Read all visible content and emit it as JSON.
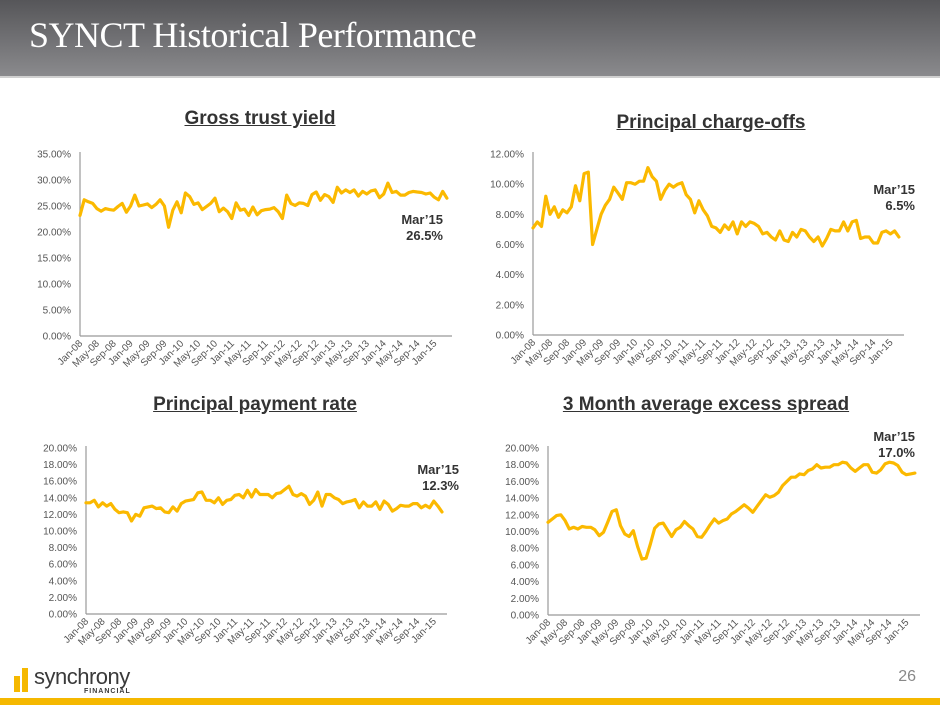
{
  "header": {
    "title": "SYNCT Historical Performance"
  },
  "footer": {
    "logo_text": "synchrony",
    "logo_sub": "FINANCIAL",
    "page_number": "26"
  },
  "colors": {
    "line": "#fbb900",
    "axis": "#999999",
    "header_top": "#565659",
    "header_bottom": "#8a8a8d",
    "footer_bar": "#f5b800"
  },
  "x_ticks": [
    "Jan-08",
    "May-08",
    "Sep-08",
    "Jan-09",
    "May-09",
    "Sep-09",
    "Jan-10",
    "May-10",
    "Sep-10",
    "Jan-11",
    "May-11",
    "Sep-11",
    "Jan-12",
    "May-12",
    "Sep-12",
    "Jan-13",
    "May-13",
    "Sep-13",
    "Jan-14",
    "May-14",
    "Sep-14",
    "Jan-15"
  ],
  "chart_data": [
    {
      "type": "line",
      "title": "Gross trust yield",
      "xlabel": "",
      "ylabel": "",
      "ylim": [
        0,
        35
      ],
      "y_ticks": [
        "0.00%",
        "5.00%",
        "10.00%",
        "15.00%",
        "20.00%",
        "25.00%",
        "30.00%",
        "35.00%"
      ],
      "y_tick_values": [
        0,
        5,
        10,
        15,
        20,
        25,
        30,
        35
      ],
      "annotation": {
        "line1": "Mar’15",
        "line2": "26.5%"
      },
      "series": [
        {
          "name": "Gross trust yield",
          "values": [
            23.2,
            26.2,
            25.8,
            25.5,
            24.5,
            24.0,
            24.5,
            24.3,
            24.2,
            24.9,
            25.5,
            23.8,
            25.0,
            27.1,
            25.0,
            25.2,
            25.4,
            24.7,
            25.3,
            26.2,
            25.0,
            20.9,
            24.2,
            25.8,
            23.7,
            27.5,
            26.8,
            25.3,
            25.6,
            24.3,
            24.9,
            25.5,
            26.5,
            23.9,
            24.6,
            23.9,
            22.6,
            25.6,
            24.2,
            24.4,
            23.2,
            24.8,
            23.3,
            24.1,
            24.3,
            24.4,
            24.7,
            23.9,
            22.6,
            27.1,
            25.5,
            25.1,
            25.6,
            25.5,
            25.1,
            27.2,
            27.7,
            26.1,
            27.2,
            26.8,
            25.7,
            28.6,
            27.5,
            28.1,
            27.6,
            28.1,
            26.9,
            27.8,
            27.3,
            27.9,
            28.1,
            26.6,
            27.3,
            29.4,
            27.6,
            27.8,
            27.1,
            27.1,
            27.6,
            27.8,
            27.7,
            27.6,
            27.3,
            27.5,
            26.7,
            26.2,
            27.8,
            26.5
          ]
        }
      ]
    },
    {
      "type": "line",
      "title": "Principal charge-offs",
      "xlabel": "",
      "ylabel": "",
      "ylim": [
        0,
        12
      ],
      "y_ticks": [
        "0.00%",
        "2.00%",
        "4.00%",
        "6.00%",
        "8.00%",
        "10.00%",
        "12.00%"
      ],
      "y_tick_values": [
        0,
        2,
        4,
        6,
        8,
        10,
        12
      ],
      "annotation": {
        "line1": "Mar’15",
        "line2": "6.5%"
      },
      "series": [
        {
          "name": "Principal charge-offs",
          "values": [
            7.1,
            7.5,
            7.2,
            9.2,
            8.0,
            8.5,
            7.8,
            8.3,
            8.1,
            8.5,
            9.9,
            8.9,
            10.7,
            10.8,
            6.0,
            7.0,
            8.0,
            8.6,
            9.0,
            9.8,
            9.4,
            9.0,
            10.1,
            10.1,
            10.0,
            10.2,
            10.2,
            11.1,
            10.5,
            10.2,
            9.0,
            9.6,
            10.0,
            9.8,
            10.0,
            10.1,
            9.3,
            9.0,
            8.1,
            8.9,
            8.3,
            7.9,
            7.2,
            7.1,
            6.8,
            7.3,
            7.0,
            7.5,
            6.7,
            7.5,
            7.2,
            7.5,
            7.4,
            7.2,
            6.7,
            6.8,
            6.5,
            6.3,
            6.9,
            6.3,
            6.2,
            6.8,
            6.5,
            7.0,
            6.9,
            6.5,
            6.2,
            6.5,
            5.9,
            6.4,
            7.0,
            6.9,
            6.9,
            7.5,
            6.9,
            7.5,
            7.6,
            6.4,
            6.5,
            6.5,
            6.1,
            6.1,
            6.8,
            6.9,
            6.7,
            6.9,
            6.5
          ]
        }
      ]
    },
    {
      "type": "line",
      "title": "Principal payment rate",
      "xlabel": "",
      "ylabel": "",
      "ylim": [
        0,
        20
      ],
      "y_ticks": [
        "0.00%",
        "2.00%",
        "4.00%",
        "6.00%",
        "8.00%",
        "10.00%",
        "12.00%",
        "14.00%",
        "16.00%",
        "18.00%",
        "20.00%"
      ],
      "y_tick_values": [
        0,
        2,
        4,
        6,
        8,
        10,
        12,
        14,
        16,
        18,
        20
      ],
      "annotation": {
        "line1": "Mar’15",
        "line2": "12.3%"
      },
      "series": [
        {
          "name": "Principal payment rate",
          "values": [
            13.4,
            13.4,
            13.7,
            12.9,
            13.4,
            13.0,
            13.3,
            12.6,
            12.2,
            12.3,
            12.2,
            11.2,
            12.0,
            11.8,
            12.8,
            12.9,
            13.0,
            12.7,
            12.8,
            12.3,
            12.2,
            12.9,
            12.4,
            13.3,
            13.6,
            13.7,
            13.8,
            14.6,
            14.7,
            13.7,
            13.7,
            13.4,
            14.0,
            13.2,
            13.7,
            13.8,
            14.3,
            14.4,
            14.0,
            14.9,
            14.1,
            15.0,
            14.4,
            14.4,
            14.4,
            14.0,
            14.5,
            14.6,
            15.0,
            15.4,
            14.4,
            14.2,
            14.5,
            14.2,
            13.2,
            13.7,
            14.7,
            13.0,
            14.4,
            14.4,
            14.0,
            13.8,
            13.3,
            13.5,
            13.6,
            13.8,
            12.8,
            13.5,
            13.0,
            13.0,
            13.5,
            12.6,
            13.6,
            13.2,
            12.4,
            12.7,
            13.1,
            13.0,
            13.0,
            13.3,
            13.3,
            12.8,
            13.1,
            12.8,
            13.6,
            13.0,
            12.3
          ]
        }
      ]
    },
    {
      "type": "line",
      "title": "3 Month average excess spread",
      "xlabel": "",
      "ylabel": "",
      "ylim": [
        0,
        20
      ],
      "y_ticks": [
        "0.00%",
        "2.00%",
        "4.00%",
        "6.00%",
        "8.00%",
        "10.00%",
        "12.00%",
        "14.00%",
        "16.00%",
        "18.00%",
        "20.00%"
      ],
      "y_tick_values": [
        0,
        2,
        4,
        6,
        8,
        10,
        12,
        14,
        16,
        18,
        20
      ],
      "annotation": {
        "line1": "Mar’15",
        "line2": "17.0%"
      },
      "series": [
        {
          "name": "3 Month average excess spread",
          "values": [
            11.1,
            11.5,
            11.9,
            12.0,
            11.3,
            10.3,
            10.5,
            10.3,
            10.6,
            10.5,
            10.5,
            10.2,
            9.5,
            9.9,
            11.1,
            12.4,
            12.6,
            10.7,
            9.7,
            9.4,
            10.1,
            8.2,
            6.7,
            6.8,
            8.5,
            10.4,
            10.9,
            11.0,
            10.2,
            9.4,
            10.2,
            10.5,
            11.2,
            10.7,
            10.3,
            9.4,
            9.3,
            10.0,
            10.8,
            11.5,
            11.0,
            11.3,
            11.5,
            12.1,
            12.4,
            12.8,
            13.2,
            12.8,
            12.3,
            13.0,
            13.7,
            14.4,
            14.1,
            14.3,
            14.7,
            15.5,
            16.0,
            16.5,
            16.5,
            16.9,
            16.8,
            17.3,
            17.5,
            18.0,
            17.6,
            17.7,
            17.7,
            18.0,
            18.0,
            18.3,
            18.2,
            17.6,
            17.2,
            17.6,
            18.0,
            18.0,
            17.1,
            17.0,
            17.4,
            18.1,
            18.3,
            18.2,
            17.9,
            17.1,
            16.8,
            16.9,
            17.0
          ]
        }
      ]
    }
  ]
}
